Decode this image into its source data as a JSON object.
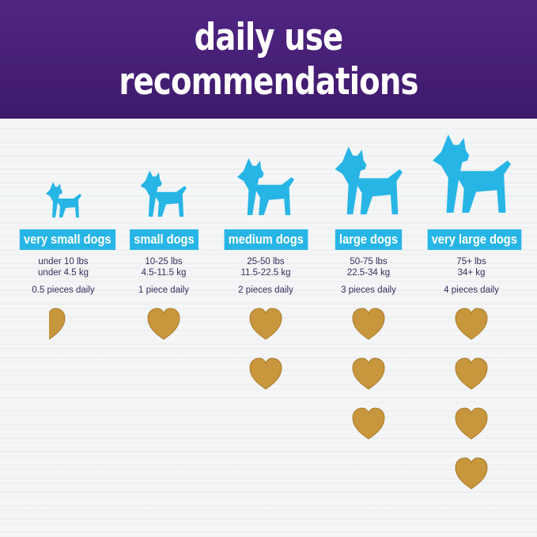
{
  "title": {
    "line1": "daily use",
    "line2": "recommendations"
  },
  "colors": {
    "header": "#4a1f78",
    "label": "#27b5e6",
    "dog": "#27b5e6",
    "treat": "#c8963c"
  },
  "sizes": [
    {
      "label": "very small dogs",
      "lbs": "under 10 lbs",
      "kg": "under 4.5 kg",
      "pieces": "0.5 pieces daily",
      "count": 0.5
    },
    {
      "label": "small dogs",
      "lbs": "10-25 lbs",
      "kg": "4.5-11.5 kg",
      "pieces": "1 piece daily",
      "count": 1
    },
    {
      "label": "medium dogs",
      "lbs": "25-50 lbs",
      "kg": "11.5-22.5 kg",
      "pieces": "2 pieces daily",
      "count": 2
    },
    {
      "label": "large dogs",
      "lbs": "50-75 lbs",
      "kg": "22.5-34 kg",
      "pieces": "3 pieces daily",
      "count": 3
    },
    {
      "label": "very large dogs",
      "lbs": "75+ lbs",
      "kg": "34+ kg",
      "pieces": "4 pieces daily",
      "count": 4
    }
  ]
}
